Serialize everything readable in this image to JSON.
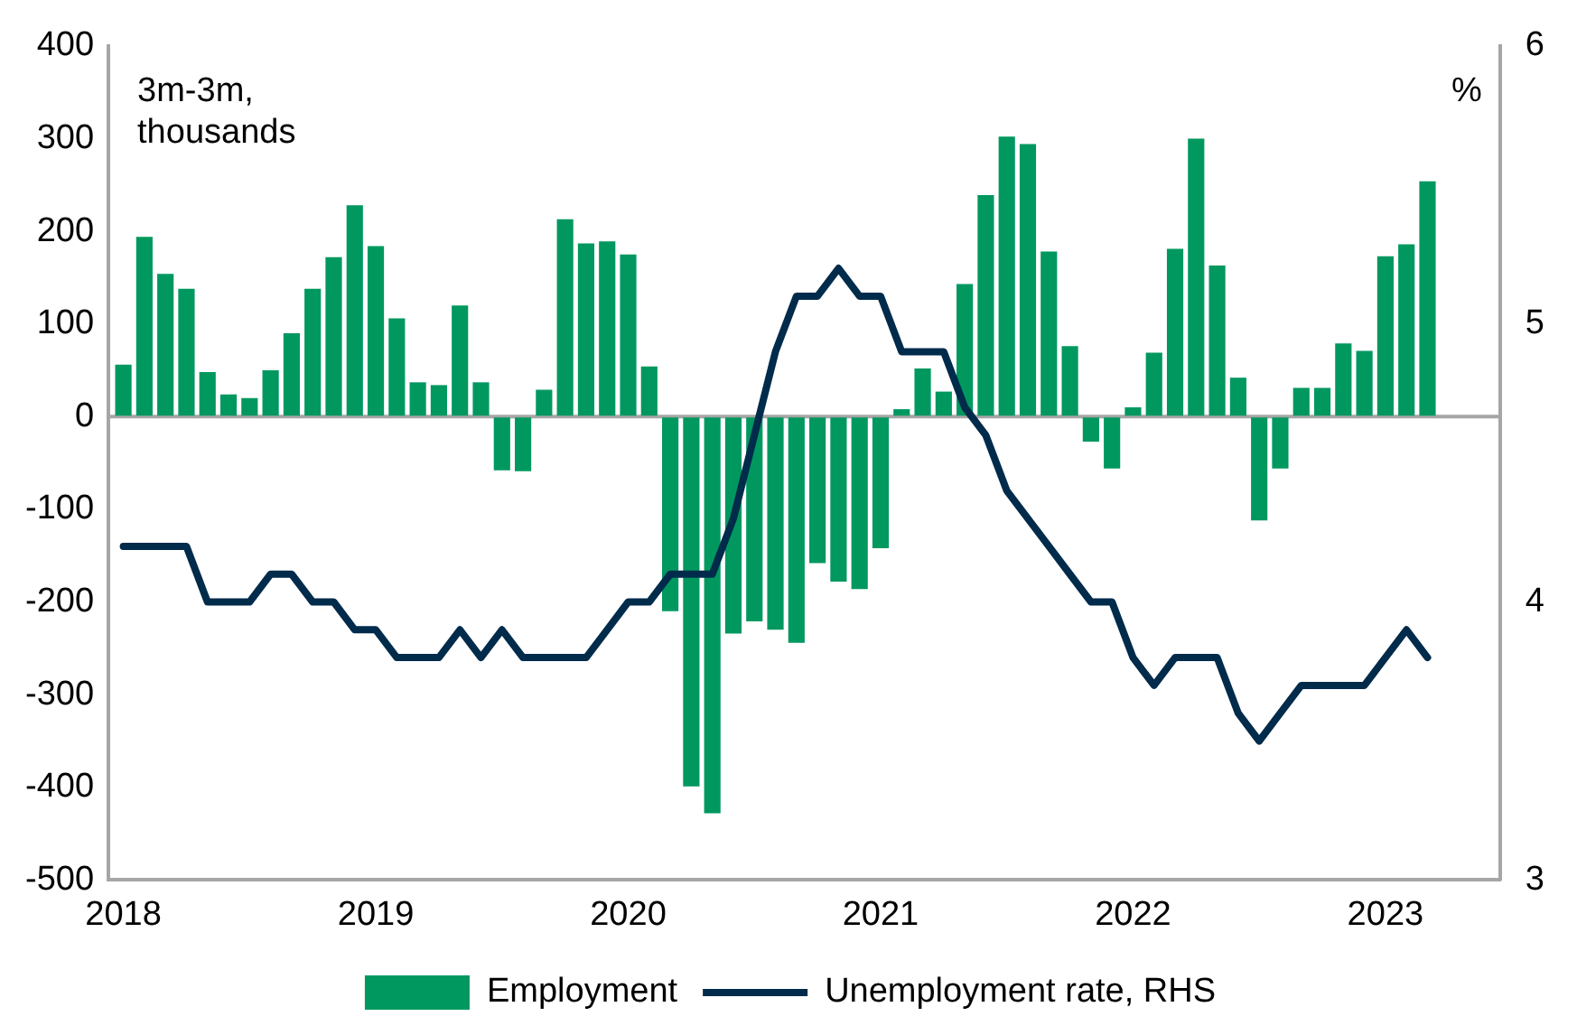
{
  "chart_data": {
    "type": "bar",
    "ylabel": "3m-3m, thousands",
    "y2label": "%",
    "x": [
      "2018-01",
      "2018-02",
      "2018-03",
      "2018-04",
      "2018-05",
      "2018-06",
      "2018-07",
      "2018-08",
      "2018-09",
      "2018-10",
      "2018-11",
      "2018-12",
      "2019-01",
      "2019-02",
      "2019-03",
      "2019-04",
      "2019-05",
      "2019-06",
      "2019-07",
      "2019-08",
      "2019-09",
      "2019-10",
      "2019-11",
      "2019-12",
      "2020-01",
      "2020-02",
      "2020-03",
      "2020-04",
      "2020-05",
      "2020-06",
      "2020-07",
      "2020-08",
      "2020-09",
      "2020-10",
      "2020-11",
      "2020-12",
      "2021-01",
      "2021-02",
      "2021-03",
      "2021-04",
      "2021-05",
      "2021-06",
      "2021-07",
      "2021-08",
      "2021-09",
      "2021-10",
      "2021-11",
      "2021-12",
      "2022-01",
      "2022-02",
      "2022-03",
      "2022-04",
      "2022-05",
      "2022-06",
      "2022-07",
      "2022-08",
      "2022-09",
      "2022-10",
      "2022-11",
      "2022-12",
      "2023-01",
      "2023-02",
      "2023-03"
    ],
    "series": [
      {
        "name": "Employment",
        "color": "#00985f",
        "values": [
          56,
          194,
          154,
          138,
          48,
          24,
          20,
          50,
          90,
          138,
          172,
          228,
          184,
          106,
          37,
          34,
          120,
          37,
          -58,
          -59,
          29,
          213,
          187,
          189,
          175,
          54,
          -210,
          -399,
          -428,
          -234,
          -221,
          -230,
          -244,
          -158,
          -178,
          -186,
          -142,
          8,
          52,
          27,
          143,
          239,
          302,
          294,
          178,
          76,
          -27,
          -56,
          10,
          69,
          181,
          300,
          163,
          42,
          -112,
          -56,
          31,
          31,
          79,
          71,
          173,
          186,
          254
        ]
      },
      {
        "name": "Unemployment rate, RHS",
        "type": "line",
        "axis": "y2",
        "color": "#002b4b",
        "x": [
          "2018-01",
          "2018-02",
          "2018-03",
          "2018-04",
          "2018-05",
          "2018-06",
          "2018-07",
          "2018-08",
          "2018-09",
          "2018-10",
          "2018-11",
          "2018-12",
          "2019-01",
          "2019-02",
          "2019-03",
          "2019-04",
          "2019-05",
          "2019-06",
          "2019-07",
          "2019-08",
          "2019-09",
          "2019-10",
          "2019-11",
          "2019-12",
          "2020-01",
          "2020-02",
          "2020-03",
          "2020-04",
          "2020-05",
          "2020-06",
          "2020-07",
          "2020-08",
          "2020-09",
          "2020-10",
          "2020-11",
          "2020-12",
          "2021-01",
          "2021-02",
          "2021-03",
          "2021-04",
          "2021-05",
          "2021-06",
          "2021-07",
          "2021-08",
          "2021-09",
          "2021-10",
          "2021-11",
          "2021-12",
          "2022-01",
          "2022-02",
          "2022-03",
          "2022-04",
          "2022-05",
          "2022-06",
          "2022-07",
          "2022-08",
          "2022-09",
          "2022-10",
          "2022-11",
          "2022-12",
          "2023-01",
          "2023-02",
          "2023-03"
        ],
        "values": [
          4.2,
          4.2,
          4.2,
          4.2,
          4.0,
          4.0,
          4.0,
          4.1,
          4.1,
          4.0,
          4.0,
          3.9,
          3.9,
          3.8,
          3.8,
          3.8,
          3.9,
          3.8,
          3.9,
          3.8,
          3.8,
          3.8,
          3.8,
          3.9,
          4.0,
          4.0,
          4.1,
          4.1,
          4.1,
          4.3,
          4.6,
          4.9,
          5.1,
          5.1,
          5.2,
          5.1,
          5.1,
          4.9,
          4.9,
          4.9,
          4.7,
          4.6,
          4.4,
          4.3,
          4.2,
          4.1,
          4.0,
          4.0,
          3.8,
          3.7,
          3.8,
          3.8,
          3.8,
          3.6,
          3.5,
          3.6,
          3.7,
          3.7,
          3.7,
          3.7,
          3.8,
          3.9,
          3.8
        ]
      }
    ],
    "xlim": [
      "2017-12-10",
      "2023-06-15"
    ],
    "xticks": [
      "2018",
      "2019",
      "2020",
      "2021",
      "2022",
      "2023"
    ],
    "ylim": [
      -500,
      400
    ],
    "yticks": [
      -500,
      -400,
      -300,
      -200,
      -100,
      0,
      100,
      200,
      300,
      400
    ],
    "y2lim": [
      3,
      6
    ],
    "y2ticks": [
      3,
      4,
      5,
      6
    ],
    "ref_lines": [
      {
        "axis": "y",
        "value": 0,
        "color": "#a6a6a6"
      }
    ],
    "grid": false,
    "legend": "bottom",
    "marker": "none",
    "line_style": "solid"
  }
}
